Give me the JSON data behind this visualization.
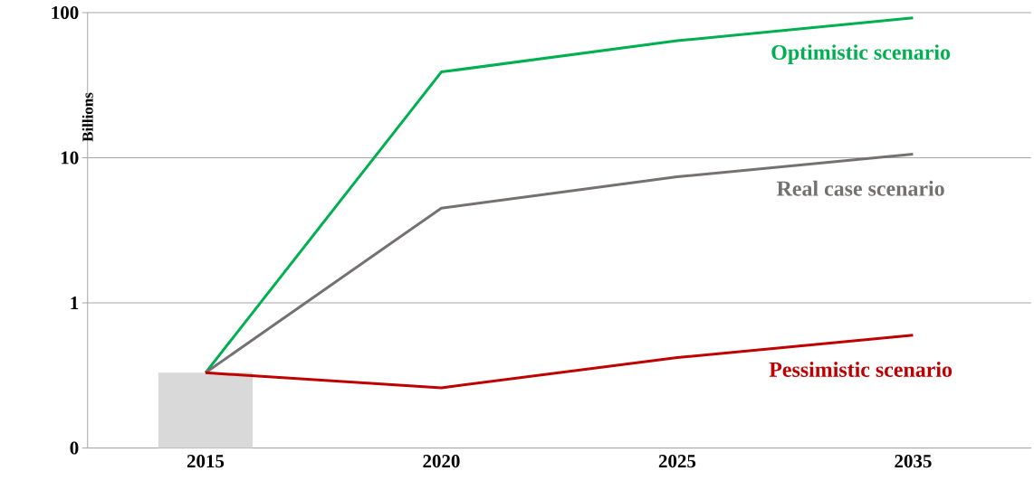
{
  "chart_data": {
    "type": "line",
    "ylabel": "Billions",
    "categories": [
      "2015",
      "2020",
      "2025",
      "2035"
    ],
    "series": [
      {
        "type": "bar",
        "color": "#d9d9d9",
        "values": [
          0.33,
          null,
          null,
          null
        ]
      },
      {
        "name": "Optimistic scenario",
        "color": "#00b050",
        "values": [
          0.33,
          39,
          64,
          92
        ]
      },
      {
        "name": "Real case scenario",
        "color": "#767171",
        "values": [
          0.33,
          4.5,
          7.4,
          10.6
        ]
      },
      {
        "name": "Pessimistic scenario",
        "color": "#c00000",
        "values": [
          0.33,
          0.26,
          0.42,
          0.6
        ]
      }
    ],
    "log": true,
    "ylim": [
      0.1,
      100
    ],
    "yticks": [
      {
        "value": 0.1,
        "label": "0"
      },
      1,
      10,
      100
    ],
    "grid": "y"
  }
}
